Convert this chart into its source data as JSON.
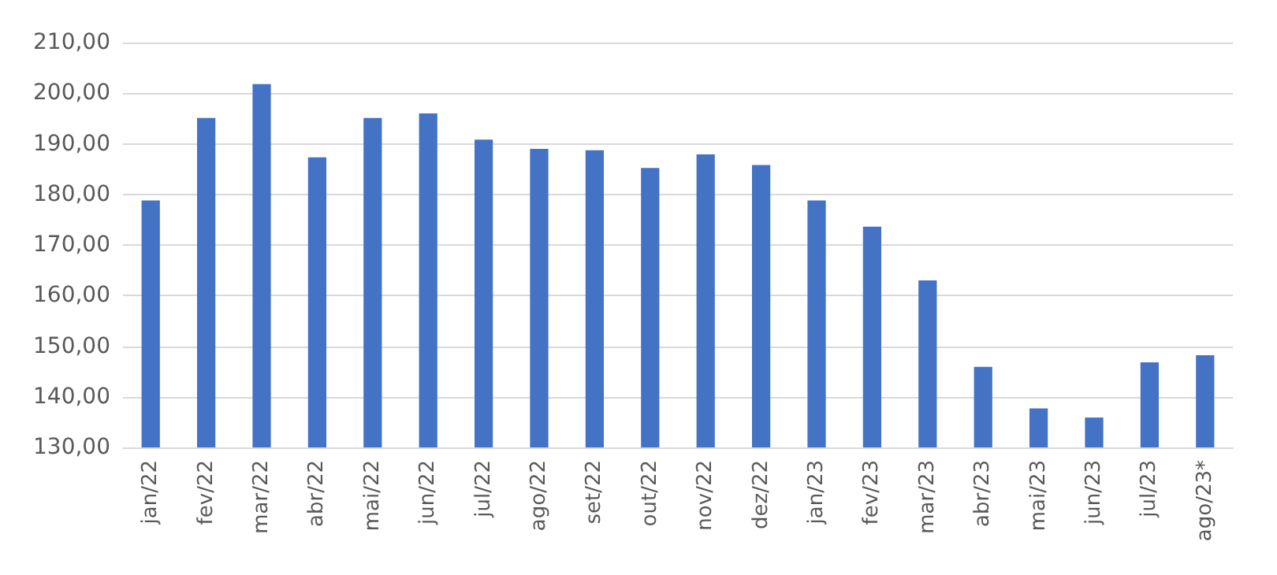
{
  "chart_data": {
    "type": "bar",
    "categories": [
      "jan/22",
      "fev/22",
      "mar/22",
      "abr/22",
      "mai/22",
      "jun/22",
      "jul/22",
      "ago/22",
      "set/22",
      "out/22",
      "nov/22",
      "dez/22",
      "jan/23",
      "fev/23",
      "mar/23",
      "abr/23",
      "mai/23",
      "jun/23",
      "jul/23",
      "ago/23*"
    ],
    "values": [
      178.8,
      195.1,
      201.8,
      187.3,
      195.1,
      196.0,
      190.8,
      189.0,
      188.7,
      185.2,
      187.9,
      185.8,
      178.8,
      173.6,
      163.0,
      145.9,
      137.7,
      135.9,
      146.8,
      148.2
    ],
    "color": "#4472c4",
    "ylim": [
      130,
      210
    ],
    "yticks": [
      {
        "value": 130,
        "label": "130,00"
      },
      {
        "value": 140,
        "label": "140,00"
      },
      {
        "value": 150,
        "label": "150,00"
      },
      {
        "value": 160,
        "label": "160,00"
      },
      {
        "value": 170,
        "label": "170,00"
      },
      {
        "value": 180,
        "label": "180,00"
      },
      {
        "value": 190,
        "label": "190,00"
      },
      {
        "value": 200,
        "label": "200,00"
      },
      {
        "value": 210,
        "label": "210,00"
      }
    ],
    "grid": "y"
  }
}
